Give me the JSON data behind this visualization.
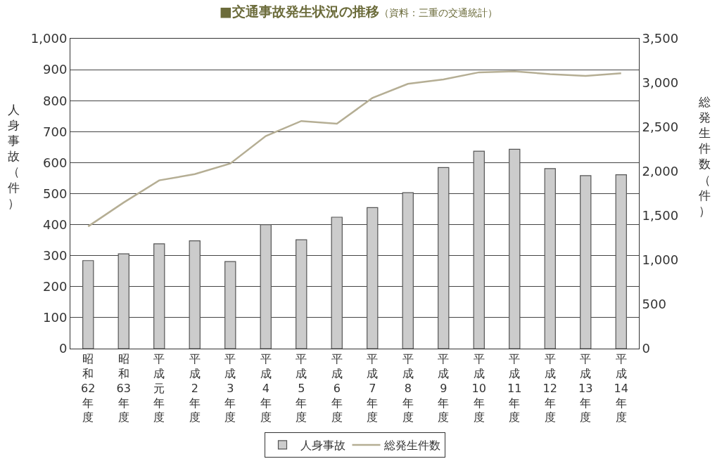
{
  "chart_data": {
    "type": "bar",
    "title": "■交通事故発生状況の推移",
    "subtitle": "（資料：三重の交通統計）",
    "ylabel": "人身事故（件）",
    "y2label": "総発生件数（件）",
    "categories": [
      "昭和62年度",
      "昭和63年度",
      "平成元年度",
      "平成2年度",
      "平成3年度",
      "平成4年度",
      "平成5年度",
      "平成6年度",
      "平成7年度",
      "平成8年度",
      "平成9年度",
      "平成10年度",
      "平成11年度",
      "平成12年度",
      "平成13年度",
      "平成14年度"
    ],
    "series": [
      {
        "name": "人身事故",
        "color": "#cccccc",
        "values": [
          284,
          306,
          338,
          348,
          281,
          400,
          351,
          424,
          455,
          503,
          584,
          637,
          643,
          581,
          558,
          561
        ]
      },
      {
        "name": "総発生件数",
        "type": "line",
        "axis": "y2",
        "color": "#b5ae94",
        "values": [
          1380,
          1650,
          1900,
          1970,
          2090,
          2400,
          2570,
          2540,
          2830,
          2990,
          3040,
          3120,
          3130,
          3100,
          3080,
          3110
        ]
      }
    ],
    "ylim": [
      0,
      1000
    ],
    "yticks": [
      0,
      100,
      200,
      300,
      400,
      500,
      600,
      700,
      800,
      900,
      {
        "value": 1000,
        "label": "1,000"
      }
    ],
    "y2lim": [
      0,
      3500
    ],
    "y2ticks": [
      0,
      500,
      {
        "value": 1000,
        "label": "1,000"
      },
      {
        "value": 1500,
        "label": "1,500"
      },
      {
        "value": 2000,
        "label": "2,000"
      },
      {
        "value": 2500,
        "label": "2,500"
      },
      {
        "value": 3000,
        "label": "3,000"
      },
      {
        "value": 3500,
        "label": "3,500"
      }
    ],
    "grid": "y",
    "legend": "bottom",
    "marker": "none",
    "line_style": "solid"
  }
}
